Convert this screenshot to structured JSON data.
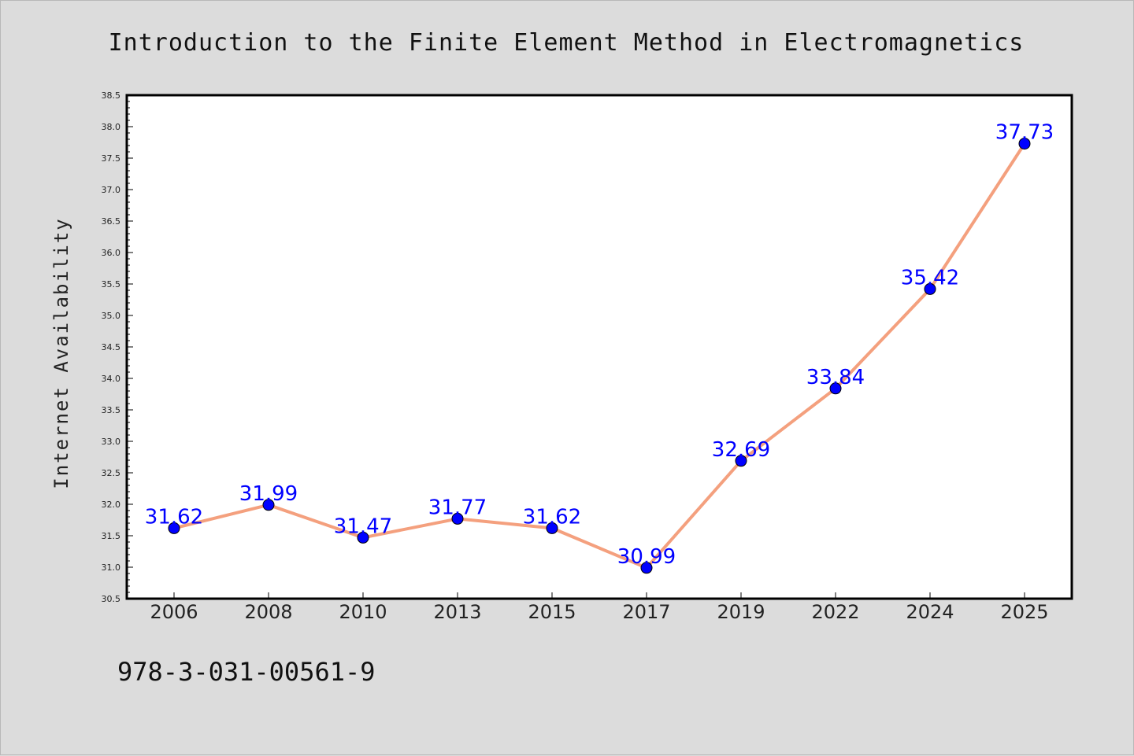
{
  "chart_data": {
    "type": "line",
    "title": "Introduction to the Finite Element Method in Electromagnetics",
    "xlabel": "",
    "ylabel": "Internet Availability",
    "categories": [
      "2006",
      "2008",
      "2010",
      "2013",
      "2015",
      "2017",
      "2019",
      "2022",
      "2024",
      "2025"
    ],
    "series": [
      {
        "values": [
          31.62,
          31.99,
          31.47,
          31.77,
          31.62,
          30.99,
          32.69,
          33.84,
          35.42,
          37.73
        ]
      }
    ],
    "data_labels": [
      "31.62",
      "31.99",
      "31.47",
      "31.77",
      "31.62",
      "30.99",
      "32.69",
      "33.84",
      "35.42",
      "37.73"
    ],
    "ylim": [
      30.5,
      38.5
    ],
    "yticks": [
      "30.5",
      "31.0",
      "31.5",
      "32.0",
      "32.5",
      "33.0",
      "33.5",
      "34.0",
      "34.5",
      "35.0",
      "35.5",
      "36.0",
      "36.5",
      "37.0",
      "37.5",
      "38.0",
      "38.5"
    ],
    "grid": false,
    "legend": "none",
    "colors": {
      "line": "#f4a07e",
      "marker": "#0000ff",
      "label": "#0000ff",
      "background": "#dcdcdc",
      "plot_background": "#ffffff"
    }
  },
  "footer": {
    "text": "978-3-031-00561-9"
  }
}
